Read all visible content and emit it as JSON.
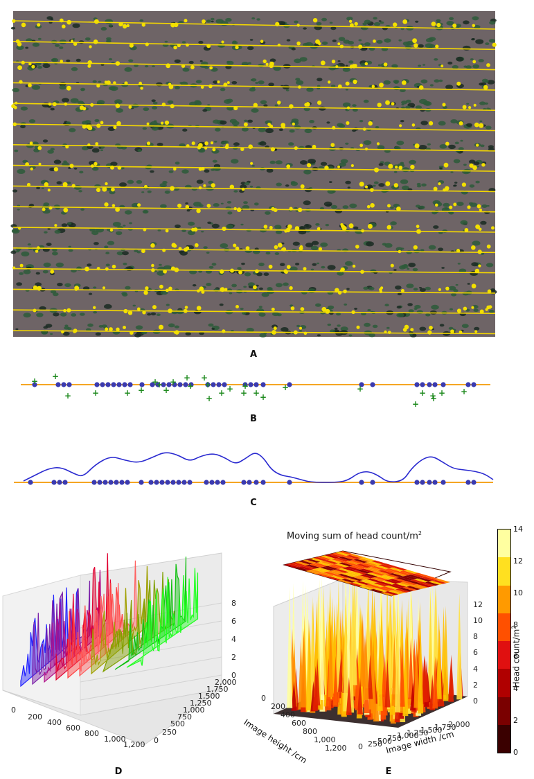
{
  "panels": {
    "a": "A",
    "b": "B",
    "c": "C",
    "d": "D",
    "e": "E"
  },
  "colors": {
    "row_line": "#f5d800",
    "head_marker": "#f3e000",
    "axis_line": "#f5a623",
    "dot_fill": "#3a3ab0",
    "plus": "#1e8a1e",
    "density_line": "#2a2ad0",
    "soil": "#6e6466",
    "plant": "#2d5a3a"
  },
  "panel_d": {
    "zticks": [
      "0",
      "2",
      "4",
      "6",
      "8"
    ],
    "xticks": [
      "0",
      "200",
      "400",
      "600",
      "800",
      "1,000",
      "1,200"
    ],
    "yticks": [
      "0",
      "250",
      "500",
      "750",
      "1,000",
      "1,250",
      "1,500",
      "1,750",
      "2,000"
    ],
    "series_colors": [
      "#2020ff",
      "#7a1fa8",
      "#b0108a",
      "#e00030",
      "#ff4040",
      "#ff6060",
      "#a0a000",
      "#80a000",
      "#10c010",
      "#20ff20"
    ]
  },
  "panel_e": {
    "title": "Moving sum of head count/m",
    "title_sup": "2",
    "zticks": [
      "0",
      "2",
      "4",
      "6",
      "8",
      "10",
      "12"
    ],
    "xlabel": "Image height /cm",
    "xticks": [
      "0",
      "200",
      "400",
      "600",
      "800",
      "1,000",
      "1,200"
    ],
    "ylabel": "Image width /cm",
    "yticks": [
      "0",
      "250",
      "500",
      "750",
      "1,000",
      "1,250",
      "1,500",
      "1,750",
      "2,000"
    ],
    "colorbar_label": "Head count/m",
    "colorbar_sup": "2",
    "colorbar_ticks": [
      "0",
      "2",
      "4",
      "6",
      "8",
      "10",
      "12",
      "14"
    ],
    "colorbar_colors": [
      "#3a0000",
      "#7a0000",
      "#b00000",
      "#e01010",
      "#ff5000",
      "#ff9a00",
      "#ffe020",
      "#ffffa0"
    ]
  }
}
